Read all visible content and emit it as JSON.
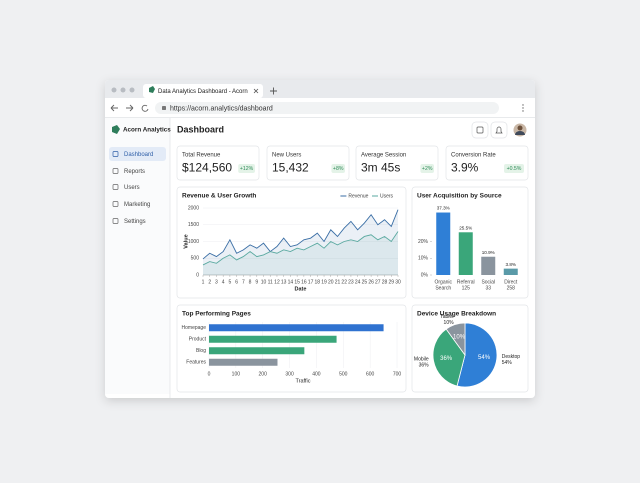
{
  "browser": {
    "tab_title": "Data Analytics Dashboard - Acorn",
    "url": "https://acorn.analytics/dashboard"
  },
  "sidebar": {
    "brand": "Acorn Analytics",
    "nav": [
      "Dashboard",
      "Reports",
      "Users",
      "Marketing",
      "Settings"
    ]
  },
  "header": {
    "title": "Dashboard"
  },
  "kpis": [
    {
      "label": "Total Revenue",
      "value": "$124,560",
      "change": "+12%"
    },
    {
      "label": "New Users",
      "value": "15,432",
      "change": "+8%"
    },
    {
      "label": "Average Session",
      "value": "3m 45s",
      "change": "+2%"
    },
    {
      "label": "Conversion Rate",
      "value": "3.9%",
      "change": "+0.5%"
    }
  ],
  "chart_data": [
    {
      "type": "line",
      "title": "Revenue & User Growth",
      "x_label": "Date",
      "y_label": "Value",
      "x": [
        1,
        2,
        3,
        4,
        5,
        6,
        7,
        8,
        9,
        10,
        11,
        12,
        13,
        14,
        15,
        16,
        17,
        18,
        19,
        20,
        21,
        22,
        23,
        24,
        25,
        26,
        27,
        28,
        29,
        30
      ],
      "xlim": [
        1,
        30
      ],
      "xticks": [
        1,
        2,
        3,
        4,
        5,
        6,
        7,
        8,
        9,
        10,
        11,
        12,
        13,
        14,
        15,
        16,
        17,
        18,
        19,
        20,
        21,
        22,
        23,
        24,
        25,
        26,
        27,
        28,
        29,
        30
      ],
      "ylim": [
        0,
        2000
      ],
      "yticks": [
        0,
        500,
        1000,
        1500,
        2000
      ],
      "grid": true,
      "legend": "top-right",
      "series": [
        {
          "name": "Revenue",
          "color": "#3a6ea5",
          "values": [
            480,
            650,
            550,
            700,
            1050,
            650,
            750,
            900,
            800,
            950,
            700,
            850,
            1100,
            850,
            900,
            1050,
            1100,
            1250,
            1000,
            1350,
            1150,
            1400,
            1600,
            1350,
            1550,
            1800,
            1500,
            1650,
            1450,
            1950
          ]
        },
        {
          "name": "Users",
          "color": "#5aa9a0",
          "values": [
            300,
            400,
            350,
            500,
            600,
            450,
            550,
            700,
            550,
            600,
            700,
            650,
            750,
            700,
            800,
            750,
            850,
            950,
            800,
            1000,
            900,
            1000,
            1050,
            1000,
            1150,
            1200,
            1050,
            1150,
            1000,
            1300
          ]
        }
      ]
    },
    {
      "type": "bar",
      "title": "User Acquisition by Source",
      "categories": [
        [
          "Organic",
          "Search"
        ],
        [
          "Referral",
          "125"
        ],
        [
          "Social",
          "33"
        ],
        [
          "Direct",
          "258"
        ]
      ],
      "values": [
        37.3,
        25.5,
        10.9,
        3.8
      ],
      "value_labels": [
        "37.3%",
        "25.5%",
        "10.9%",
        "3.8%"
      ],
      "colors": [
        "#2f7fd6",
        "#3aa67a",
        "#8a949e",
        "#5a9aa8"
      ],
      "ylim": [
        0,
        40
      ],
      "yticks": [
        {
          "value": 0,
          "label": "0%"
        },
        {
          "value": 10,
          "label": "10%"
        },
        {
          "value": 20,
          "label": "20%"
        }
      ]
    },
    {
      "type": "barh",
      "title": "Top Performing Pages",
      "x_label": "Traffic",
      "categories": [
        "Homepage",
        "Product",
        "Blog",
        "Features"
      ],
      "values": [
        650,
        475,
        355,
        255
      ],
      "colors": [
        "#2f72d0",
        "#3aa67a",
        "#3aa67a",
        "#8a949e"
      ],
      "xlim": [
        0,
        700
      ],
      "xticks": [
        0,
        100,
        200,
        300,
        400,
        500,
        600,
        700
      ],
      "grid": true
    },
    {
      "type": "pie",
      "title": "Device Usage Breakdown",
      "categories": [
        "Desktop",
        "Mobile",
        "Tablet"
      ],
      "values": [
        54,
        36,
        10
      ],
      "value_labels": [
        "54%",
        "36%",
        "10%"
      ],
      "colors": [
        "#2f7fd6",
        "#3aa67a",
        "#8a949e"
      ]
    }
  ]
}
